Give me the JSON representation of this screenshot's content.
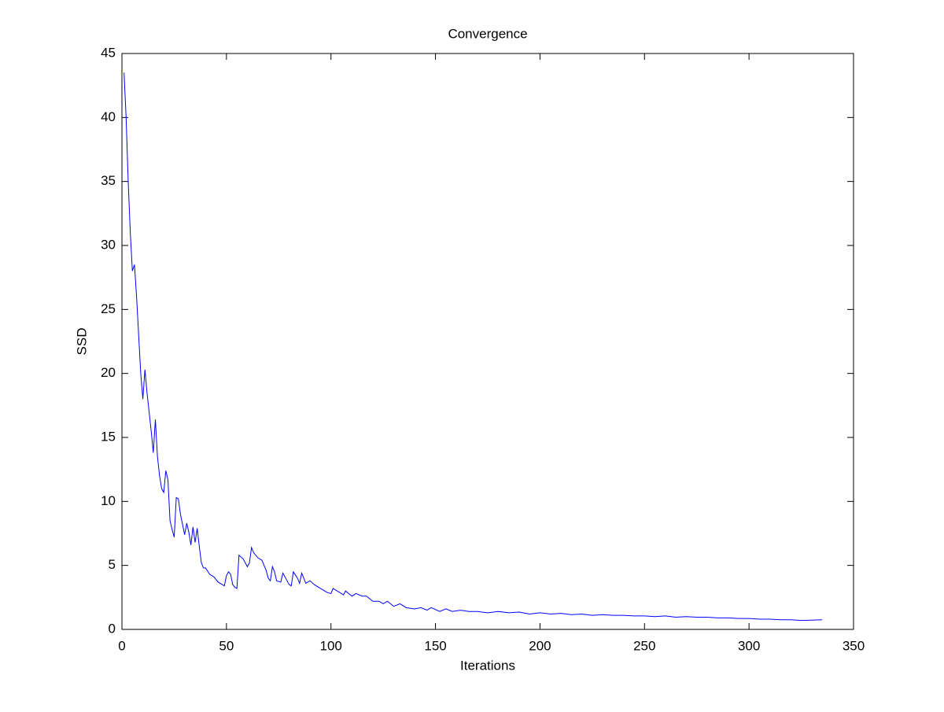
{
  "chart_data": {
    "type": "line",
    "title": "Convergence",
    "xlabel": "Iterations",
    "ylabel": "SSD",
    "x": [
      1,
      2,
      3,
      4,
      5,
      6,
      7,
      8,
      9,
      10,
      11,
      12,
      13,
      14,
      15,
      16,
      17,
      18,
      19,
      20,
      21,
      22,
      23,
      24,
      25,
      26,
      27,
      28,
      29,
      30,
      31,
      32,
      33,
      34,
      35,
      36,
      37,
      38,
      39,
      40,
      42,
      44,
      46,
      48,
      49,
      50,
      51,
      52,
      53,
      54,
      55,
      56,
      58,
      60,
      61,
      62,
      63,
      65,
      67,
      69,
      70,
      71,
      72,
      73,
      74,
      76,
      77,
      78,
      80,
      81,
      82,
      84,
      85,
      86,
      88,
      90,
      92,
      95,
      98,
      100,
      101,
      104,
      106,
      107,
      110,
      112,
      115,
      117,
      120,
      123,
      125,
      127,
      130,
      133,
      136,
      140,
      143,
      146,
      148,
      152,
      155,
      158,
      162,
      166,
      170,
      175,
      180,
      185,
      190,
      195,
      200,
      205,
      210,
      215,
      220,
      225,
      230,
      235,
      240,
      245,
      250,
      255,
      260,
      265,
      270,
      275,
      280,
      285,
      290,
      295,
      300,
      305,
      310,
      315,
      320,
      325,
      330,
      335
    ],
    "series": [
      {
        "name": "SSD",
        "color": "#0000ff",
        "values": [
          43.5,
          40,
          35,
          31,
          28,
          28.5,
          26,
          23,
          20,
          18,
          20.3,
          18.5,
          17,
          15.5,
          13.8,
          16.4,
          13.5,
          12,
          11,
          10.7,
          12.4,
          11.7,
          8.5,
          7.8,
          7.2,
          10.3,
          10.2,
          9,
          8.2,
          7.4,
          8.3,
          7.6,
          6.6,
          8,
          6.8,
          7.9,
          6.5,
          5.2,
          4.8,
          4.8,
          4.3,
          4.1,
          3.7,
          3.5,
          3.4,
          4.2,
          4.5,
          4.3,
          3.5,
          3.3,
          3.2,
          5.8,
          5.5,
          4.9,
          5.2,
          6.4,
          6,
          5.6,
          5.4,
          4.6,
          4,
          3.8,
          4.9,
          4.5,
          3.8,
          3.7,
          4.4,
          4.1,
          3.5,
          3.4,
          4.5,
          4,
          3.6,
          4.4,
          3.6,
          3.8,
          3.5,
          3.2,
          2.9,
          2.8,
          3.2,
          2.9,
          2.7,
          3,
          2.6,
          2.8,
          2.6,
          2.6,
          2.2,
          2.2,
          2,
          2.2,
          1.8,
          2,
          1.7,
          1.6,
          1.7,
          1.5,
          1.7,
          1.4,
          1.6,
          1.4,
          1.5,
          1.4,
          1.4,
          1.3,
          1.4,
          1.3,
          1.35,
          1.2,
          1.3,
          1.2,
          1.25,
          1.15,
          1.2,
          1.1,
          1.15,
          1.1,
          1.1,
          1.05,
          1.05,
          1,
          1.05,
          0.95,
          1,
          0.95,
          0.95,
          0.9,
          0.9,
          0.85,
          0.85,
          0.8,
          0.8,
          0.75,
          0.75,
          0.7,
          0.72,
          0.75
        ]
      }
    ],
    "xlim": [
      0,
      350
    ],
    "xticks": [
      0,
      50,
      100,
      150,
      200,
      250,
      300,
      350
    ],
    "ylim": [
      0,
      45
    ],
    "yticks": [
      0,
      5,
      10,
      15,
      20,
      25,
      30,
      35,
      40,
      45
    ]
  }
}
